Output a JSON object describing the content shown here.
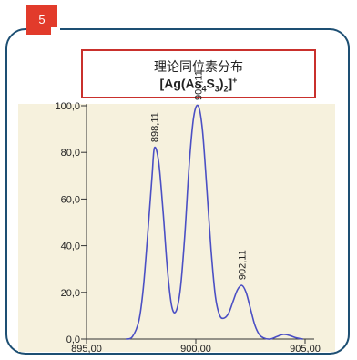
{
  "badge": {
    "number": "5"
  },
  "title_box": {
    "line1": "理论同位素分布",
    "formula": {
      "p1": "[Ag(As",
      "sub1": "4",
      "p2": "S",
      "sub2": "3",
      "p3": ")",
      "sub3": "2",
      "p4": "]",
      "sup": "+"
    }
  },
  "colors": {
    "frame": "#1d4f73",
    "badge": "#e23b2b",
    "title_border": "#c9302c",
    "plot_bg": "#f6f1dd",
    "curve": "#4b4fc4"
  },
  "chart_data": {
    "type": "line",
    "x_ticks": [
      "895,00",
      "900,00",
      "905,00"
    ],
    "x_tick_values": [
      895,
      900,
      905
    ],
    "y_ticks": [
      "0,0",
      "20,0",
      "40,0",
      "60,0",
      "80,0",
      "100,0"
    ],
    "y_tick_values": [
      0,
      20,
      40,
      60,
      80,
      100
    ],
    "xlim": [
      895,
      905.5
    ],
    "ylim": [
      0,
      100
    ],
    "grid": false,
    "series": [
      {
        "x": [
          896.8,
          897.1,
          897.4,
          897.6,
          897.8,
          898.0,
          898.11,
          898.3,
          898.5,
          898.7,
          898.9,
          899.1,
          899.3,
          899.5,
          899.7,
          899.9,
          900.11,
          900.3,
          900.5,
          900.7,
          900.9,
          901.1,
          901.3,
          901.5,
          901.7,
          901.9,
          902.11,
          902.3,
          902.5,
          902.7,
          902.9,
          903.1,
          903.4,
          903.7,
          904.0,
          904.3,
          904.6,
          904.9
        ],
        "y": [
          0,
          1,
          8,
          22,
          45,
          70,
          82,
          76,
          55,
          30,
          14,
          12,
          22,
          45,
          75,
          95,
          100,
          90,
          65,
          38,
          18,
          10,
          9,
          11,
          16,
          21,
          23,
          20,
          13,
          6,
          2,
          0.5,
          0,
          1,
          2,
          1.5,
          0.5,
          0
        ]
      }
    ],
    "peak_labels": [
      {
        "x": 898.11,
        "y": 82,
        "text": "898,11"
      },
      {
        "x": 900.11,
        "y": 100,
        "text": "900,11"
      },
      {
        "x": 902.11,
        "y": 23,
        "text": "902,11"
      }
    ]
  }
}
